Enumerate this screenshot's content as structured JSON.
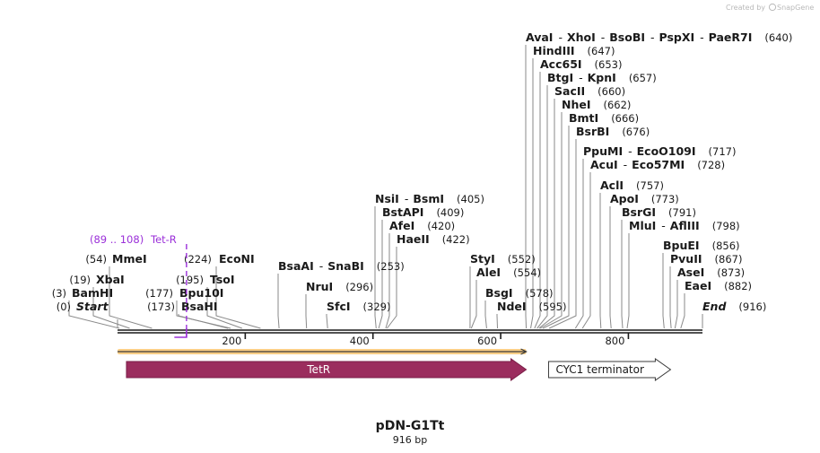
{
  "brand": {
    "created_by": "Created by",
    "app_name": "SnapGene"
  },
  "map": {
    "name": "pDN-G1Tt",
    "length_label": "916 bp",
    "length_bp": 916,
    "axis_ticks": [
      "200",
      "400",
      "600",
      "800"
    ],
    "axis_tick_values": [
      200,
      400,
      600,
      800
    ]
  },
  "features": [
    {
      "name": "TetR",
      "start": 14,
      "end": 640,
      "direction": "forward",
      "fill": "#9b2d5e",
      "text_color": "#ffffff"
    },
    {
      "name": "CYC1 terminator",
      "start": 675,
      "end": 866,
      "direction": "forward",
      "fill": "#ffffff",
      "text_color": "#1a1a1a"
    }
  ],
  "primers": [
    {
      "name": "Tet-R",
      "range_label": "(89 .. 108)",
      "start": 89,
      "end": 108,
      "color": "#9b30d9"
    }
  ],
  "orf_bar": {
    "start": 0,
    "end": 640,
    "color": "#f5a623"
  },
  "sites": [
    {
      "id": "start",
      "parts": [
        "Start"
      ],
      "pos_label": "(0)",
      "bp": 0,
      "italic": true
    },
    {
      "id": "bamhi",
      "parts": [
        "BamHI"
      ],
      "pos_label": "(3)",
      "bp": 3
    },
    {
      "id": "xbai",
      "parts": [
        "XbaI"
      ],
      "pos_label": "(19)",
      "bp": 19
    },
    {
      "id": "mmei",
      "parts": [
        "MmeI"
      ],
      "pos_label": "(54)",
      "bp": 54
    },
    {
      "id": "bsahi",
      "parts": [
        "BsaHI"
      ],
      "pos_label": "(173)",
      "bp": 173
    },
    {
      "id": "bpu10i",
      "parts": [
        "Bpu10I"
      ],
      "pos_label": "(177)",
      "bp": 177
    },
    {
      "id": "tsoi",
      "parts": [
        "TsoI"
      ],
      "pos_label": "(195)",
      "bp": 195
    },
    {
      "id": "econi",
      "parts": [
        "EcoNI"
      ],
      "pos_label": "(224)",
      "bp": 224
    },
    {
      "id": "bsaai",
      "parts": [
        "BsaAI",
        "SnaBI"
      ],
      "pos_label": "(253)",
      "bp": 253
    },
    {
      "id": "nrui",
      "parts": [
        "NruI"
      ],
      "pos_label": "(296)",
      "bp": 296
    },
    {
      "id": "sfci",
      "parts": [
        "SfcI"
      ],
      "pos_label": "(329)",
      "bp": 329
    },
    {
      "id": "nsii",
      "parts": [
        "NsiI",
        "BsmI"
      ],
      "pos_label": "(405)",
      "bp": 405
    },
    {
      "id": "bstapi",
      "parts": [
        "BstAPI"
      ],
      "pos_label": "(409)",
      "bp": 409
    },
    {
      "id": "afei",
      "parts": [
        "AfeI"
      ],
      "pos_label": "(420)",
      "bp": 420
    },
    {
      "id": "haeii",
      "parts": [
        "HaeII"
      ],
      "pos_label": "(422)",
      "bp": 422
    },
    {
      "id": "styi",
      "parts": [
        "StyI"
      ],
      "pos_label": "(552)",
      "bp": 552
    },
    {
      "id": "alei",
      "parts": [
        "AleI"
      ],
      "pos_label": "(554)",
      "bp": 554
    },
    {
      "id": "bsgi",
      "parts": [
        "BsgI"
      ],
      "pos_label": "(578)",
      "bp": 578
    },
    {
      "id": "ndei",
      "parts": [
        "NdeI"
      ],
      "pos_label": "(595)",
      "bp": 595
    },
    {
      "id": "avai",
      "parts": [
        "AvaI",
        "XhoI",
        "BsoBI",
        "PspXI",
        "PaeR7I"
      ],
      "pos_label": "(640)",
      "bp": 640
    },
    {
      "id": "hindiii",
      "parts": [
        "HindIII"
      ],
      "pos_label": "(647)",
      "bp": 647
    },
    {
      "id": "acc65i",
      "parts": [
        "Acc65I"
      ],
      "pos_label": "(653)",
      "bp": 653
    },
    {
      "id": "btgi",
      "parts": [
        "BtgI",
        "KpnI"
      ],
      "pos_label": "(657)",
      "bp": 657
    },
    {
      "id": "sacii",
      "parts": [
        "SacII"
      ],
      "pos_label": "(660)",
      "bp": 660
    },
    {
      "id": "nhei",
      "parts": [
        "NheI"
      ],
      "pos_label": "(662)",
      "bp": 662
    },
    {
      "id": "bmti",
      "parts": [
        "BmtI"
      ],
      "pos_label": "(666)",
      "bp": 666
    },
    {
      "id": "bsrbi",
      "parts": [
        "BsrBI"
      ],
      "pos_label": "(676)",
      "bp": 676
    },
    {
      "id": "ppumi",
      "parts": [
        "PpuMI",
        "EcoO109I"
      ],
      "pos_label": "(717)",
      "bp": 717
    },
    {
      "id": "acui",
      "parts": [
        "AcuI",
        "Eco57MI"
      ],
      "pos_label": "(728)",
      "bp": 728
    },
    {
      "id": "acli",
      "parts": [
        "AclI"
      ],
      "pos_label": "(757)",
      "bp": 757
    },
    {
      "id": "apoi",
      "parts": [
        "ApoI"
      ],
      "pos_label": "(773)",
      "bp": 773
    },
    {
      "id": "bsrgi",
      "parts": [
        "BsrGI"
      ],
      "pos_label": "(791)",
      "bp": 791
    },
    {
      "id": "mlui",
      "parts": [
        "MluI",
        "AflIII"
      ],
      "pos_label": "(798)",
      "bp": 798
    },
    {
      "id": "bpuei",
      "parts": [
        "BpuEI"
      ],
      "pos_label": "(856)",
      "bp": 856
    },
    {
      "id": "pvuii",
      "parts": [
        "PvuII"
      ],
      "pos_label": "(867)",
      "bp": 867
    },
    {
      "id": "asei",
      "parts": [
        "AseI"
      ],
      "pos_label": "(873)",
      "bp": 873
    },
    {
      "id": "eaei",
      "parts": [
        "EaeI"
      ],
      "pos_label": "(882)",
      "bp": 882
    },
    {
      "id": "end",
      "parts": [
        "End"
      ],
      "pos_label": "(916)",
      "bp": 916,
      "italic": true
    }
  ]
}
